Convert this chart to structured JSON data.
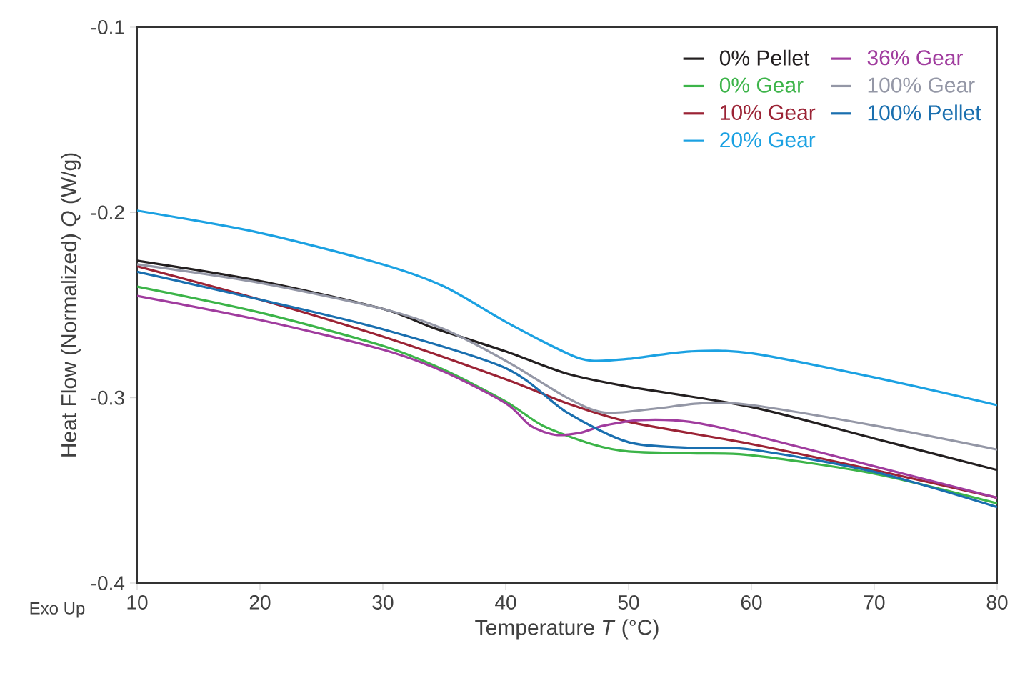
{
  "chart_data": {
    "type": "line",
    "xlabel": "Temperature *T* (°C)",
    "ylabel": "Heat Flow (Normalized)  *Q* (W/g)",
    "annotations": [
      "Exo Up"
    ],
    "xlim": [
      10,
      80
    ],
    "ylim": [
      -0.4,
      -0.1
    ],
    "xticks": [
      10,
      20,
      30,
      40,
      50,
      60,
      70,
      80
    ],
    "yticks": [
      -0.4,
      -0.3,
      -0.2,
      -0.1
    ],
    "legend": "top right",
    "grid": false,
    "marker": "none",
    "line_style": "solid",
    "series": [
      {
        "name": "0% Pellet",
        "color": "#231f20",
        "x": [
          10,
          20,
          30,
          34,
          40,
          45,
          50,
          60,
          70,
          80
        ],
        "values": [
          -0.226,
          -0.237,
          -0.252,
          -0.262,
          -0.275,
          -0.287,
          -0.294,
          -0.305,
          -0.322,
          -0.339
        ]
      },
      {
        "name": "0% Gear",
        "color": "#3cb449",
        "x": [
          10,
          20,
          30,
          35,
          40,
          43,
          47,
          50,
          55,
          60,
          70,
          80
        ],
        "values": [
          -0.24,
          -0.254,
          -0.272,
          -0.285,
          -0.302,
          -0.315,
          -0.325,
          -0.329,
          -0.33,
          -0.331,
          -0.341,
          -0.357
        ]
      },
      {
        "name": "10% Gear",
        "color": "#9b2335",
        "x": [
          10,
          20,
          30,
          40,
          45,
          50,
          60,
          70,
          80
        ],
        "values": [
          -0.229,
          -0.247,
          -0.267,
          -0.29,
          -0.303,
          -0.313,
          -0.325,
          -0.339,
          -0.354
        ]
      },
      {
        "name": "20% Gear",
        "color": "#1ba1e2",
        "x": [
          10,
          20,
          30,
          35,
          40,
          45,
          47,
          50,
          55,
          60,
          70,
          80
        ],
        "values": [
          -0.199,
          -0.211,
          -0.228,
          -0.24,
          -0.259,
          -0.276,
          -0.28,
          -0.279,
          -0.275,
          -0.276,
          -0.289,
          -0.304
        ]
      },
      {
        "name": "36% Gear",
        "color": "#a03c9e",
        "x": [
          10,
          20,
          30,
          35,
          40,
          42,
          44,
          46,
          48,
          51,
          55,
          60,
          70,
          80
        ],
        "values": [
          -0.245,
          -0.258,
          -0.274,
          -0.286,
          -0.303,
          -0.315,
          -0.32,
          -0.319,
          -0.315,
          -0.312,
          -0.313,
          -0.32,
          -0.337,
          -0.354
        ]
      },
      {
        "name": "100% Gear",
        "color": "#9497a6",
        "x": [
          10,
          20,
          30,
          35,
          40,
          45,
          48,
          52,
          56,
          60,
          70,
          80
        ],
        "values": [
          -0.228,
          -0.238,
          -0.252,
          -0.263,
          -0.28,
          -0.3,
          -0.308,
          -0.306,
          -0.303,
          -0.304,
          -0.315,
          -0.328
        ]
      },
      {
        "name": "100% Pellet",
        "color": "#1a6faf",
        "x": [
          10,
          20,
          30,
          40,
          45,
          50,
          55,
          60,
          70,
          80
        ],
        "values": [
          -0.232,
          -0.247,
          -0.263,
          -0.284,
          -0.308,
          -0.324,
          -0.327,
          -0.328,
          -0.34,
          -0.359
        ]
      }
    ]
  }
}
